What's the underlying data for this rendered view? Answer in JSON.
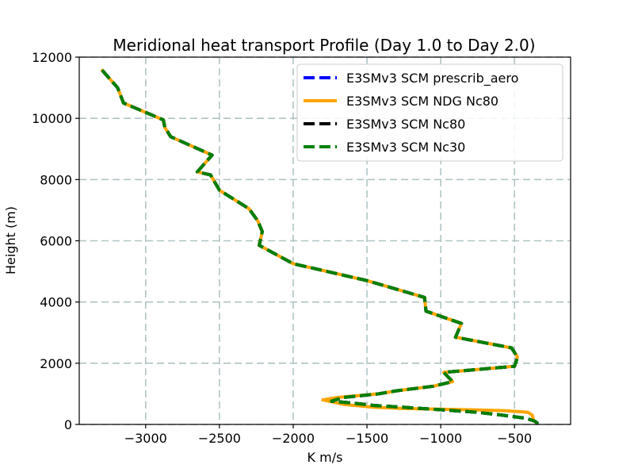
{
  "chart_data": {
    "type": "line",
    "title": "Meridional heat transport Profile (Day 1.0 to Day 2.0)",
    "xlabel": "K m/s",
    "ylabel": "Height (m)",
    "xlim": [
      -3450,
      -120
    ],
    "ylim": [
      0,
      12000
    ],
    "xticks": [
      -3000,
      -2500,
      -2000,
      -1500,
      -1000,
      -500
    ],
    "xtick_labels": [
      "−3000",
      "−2500",
      "−2000",
      "−1500",
      "−1000",
      "−500"
    ],
    "yticks": [
      0,
      2000,
      4000,
      6000,
      8000,
      10000,
      12000
    ],
    "ytick_labels": [
      "0",
      "2000",
      "4000",
      "6000",
      "8000",
      "10000",
      "12000"
    ],
    "grid": true,
    "legend_position": "top-right",
    "series": [
      {
        "name": "E3SMv3 SCM prescrib_aero",
        "color": "#0000ff",
        "style": "dashed",
        "x": [
          -340,
          -360,
          -420,
          -580,
          -760,
          -1000,
          -1250,
          -1450,
          -1600,
          -1740,
          -1660,
          -1420,
          -1300,
          -1050,
          -920,
          -980,
          -500,
          -480,
          -520,
          -900,
          -860,
          -1100,
          -1110,
          -1500,
          -2000,
          -2230,
          -2210,
          -2240,
          -2300,
          -2500,
          -2560,
          -2650,
          -2550,
          -2830,
          -2870,
          -2880,
          -3150,
          -3190,
          -3300
        ],
        "y": [
          20,
          100,
          200,
          300,
          400,
          480,
          560,
          620,
          700,
          760,
          880,
          1000,
          1100,
          1250,
          1400,
          1700,
          1900,
          2200,
          2500,
          2850,
          3300,
          3700,
          4150,
          4700,
          5250,
          5850,
          6300,
          6650,
          7050,
          7650,
          8150,
          8250,
          8800,
          9400,
          9700,
          9950,
          10500,
          11000,
          11600
        ]
      },
      {
        "name": "E3SMv3 SCM NDG Nc80",
        "color": "#ffa500",
        "style": "solid",
        "x": [
          -340,
          -370,
          -380,
          -410,
          -570,
          -800,
          -1020,
          -1250,
          -1450,
          -1650,
          -1800,
          -1700,
          -1420,
          -1300,
          -1050,
          -920,
          -980,
          -500,
          -480,
          -520,
          -900,
          -860,
          -1100,
          -1110,
          -1500,
          -2000,
          -2230,
          -2210,
          -2240,
          -2300,
          -2500,
          -2560,
          -2650,
          -2550,
          -2830,
          -2870,
          -2880,
          -3150,
          -3190,
          -3300
        ],
        "y": [
          20,
          120,
          300,
          400,
          450,
          480,
          500,
          520,
          560,
          650,
          800,
          880,
          1000,
          1100,
          1250,
          1400,
          1700,
          1900,
          2200,
          2500,
          2850,
          3300,
          3700,
          4150,
          4700,
          5250,
          5850,
          6300,
          6650,
          7050,
          7650,
          8150,
          8250,
          8800,
          9400,
          9700,
          9950,
          10500,
          11000,
          11600
        ]
      },
      {
        "name": "E3SMv3 SCM Nc80",
        "color": "#000000",
        "style": "dashed",
        "x": [
          -340,
          -360,
          -420,
          -580,
          -760,
          -1000,
          -1250,
          -1450,
          -1600,
          -1740,
          -1660,
          -1420,
          -1300,
          -1050,
          -920,
          -980,
          -500,
          -480,
          -520,
          -900,
          -860,
          -1100,
          -1110,
          -1500,
          -2000,
          -2230,
          -2210,
          -2240,
          -2300,
          -2500,
          -2560,
          -2650,
          -2550,
          -2830,
          -2870,
          -2880,
          -3150,
          -3190,
          -3300
        ],
        "y": [
          20,
          100,
          200,
          300,
          400,
          480,
          560,
          620,
          700,
          760,
          880,
          1000,
          1100,
          1250,
          1400,
          1700,
          1900,
          2200,
          2500,
          2850,
          3300,
          3700,
          4150,
          4700,
          5250,
          5850,
          6300,
          6650,
          7050,
          7650,
          8150,
          8250,
          8800,
          9400,
          9700,
          9950,
          10500,
          11000,
          11600
        ]
      },
      {
        "name": "E3SMv3 SCM Nc30",
        "color": "#008000",
        "style": "dashed",
        "x": [
          -340,
          -360,
          -420,
          -580,
          -760,
          -1000,
          -1250,
          -1450,
          -1600,
          -1740,
          -1660,
          -1420,
          -1300,
          -1050,
          -920,
          -980,
          -500,
          -480,
          -520,
          -900,
          -860,
          -1100,
          -1110,
          -1500,
          -2000,
          -2230,
          -2210,
          -2240,
          -2300,
          -2500,
          -2560,
          -2650,
          -2550,
          -2830,
          -2870,
          -2880,
          -3150,
          -3190,
          -3300
        ],
        "y": [
          20,
          100,
          200,
          300,
          400,
          480,
          560,
          620,
          700,
          760,
          880,
          1000,
          1100,
          1250,
          1400,
          1700,
          1900,
          2200,
          2500,
          2850,
          3300,
          3700,
          4150,
          4700,
          5250,
          5850,
          6300,
          6650,
          7050,
          7650,
          8150,
          8250,
          8800,
          9400,
          9700,
          9950,
          10500,
          11000,
          11600
        ]
      }
    ]
  }
}
